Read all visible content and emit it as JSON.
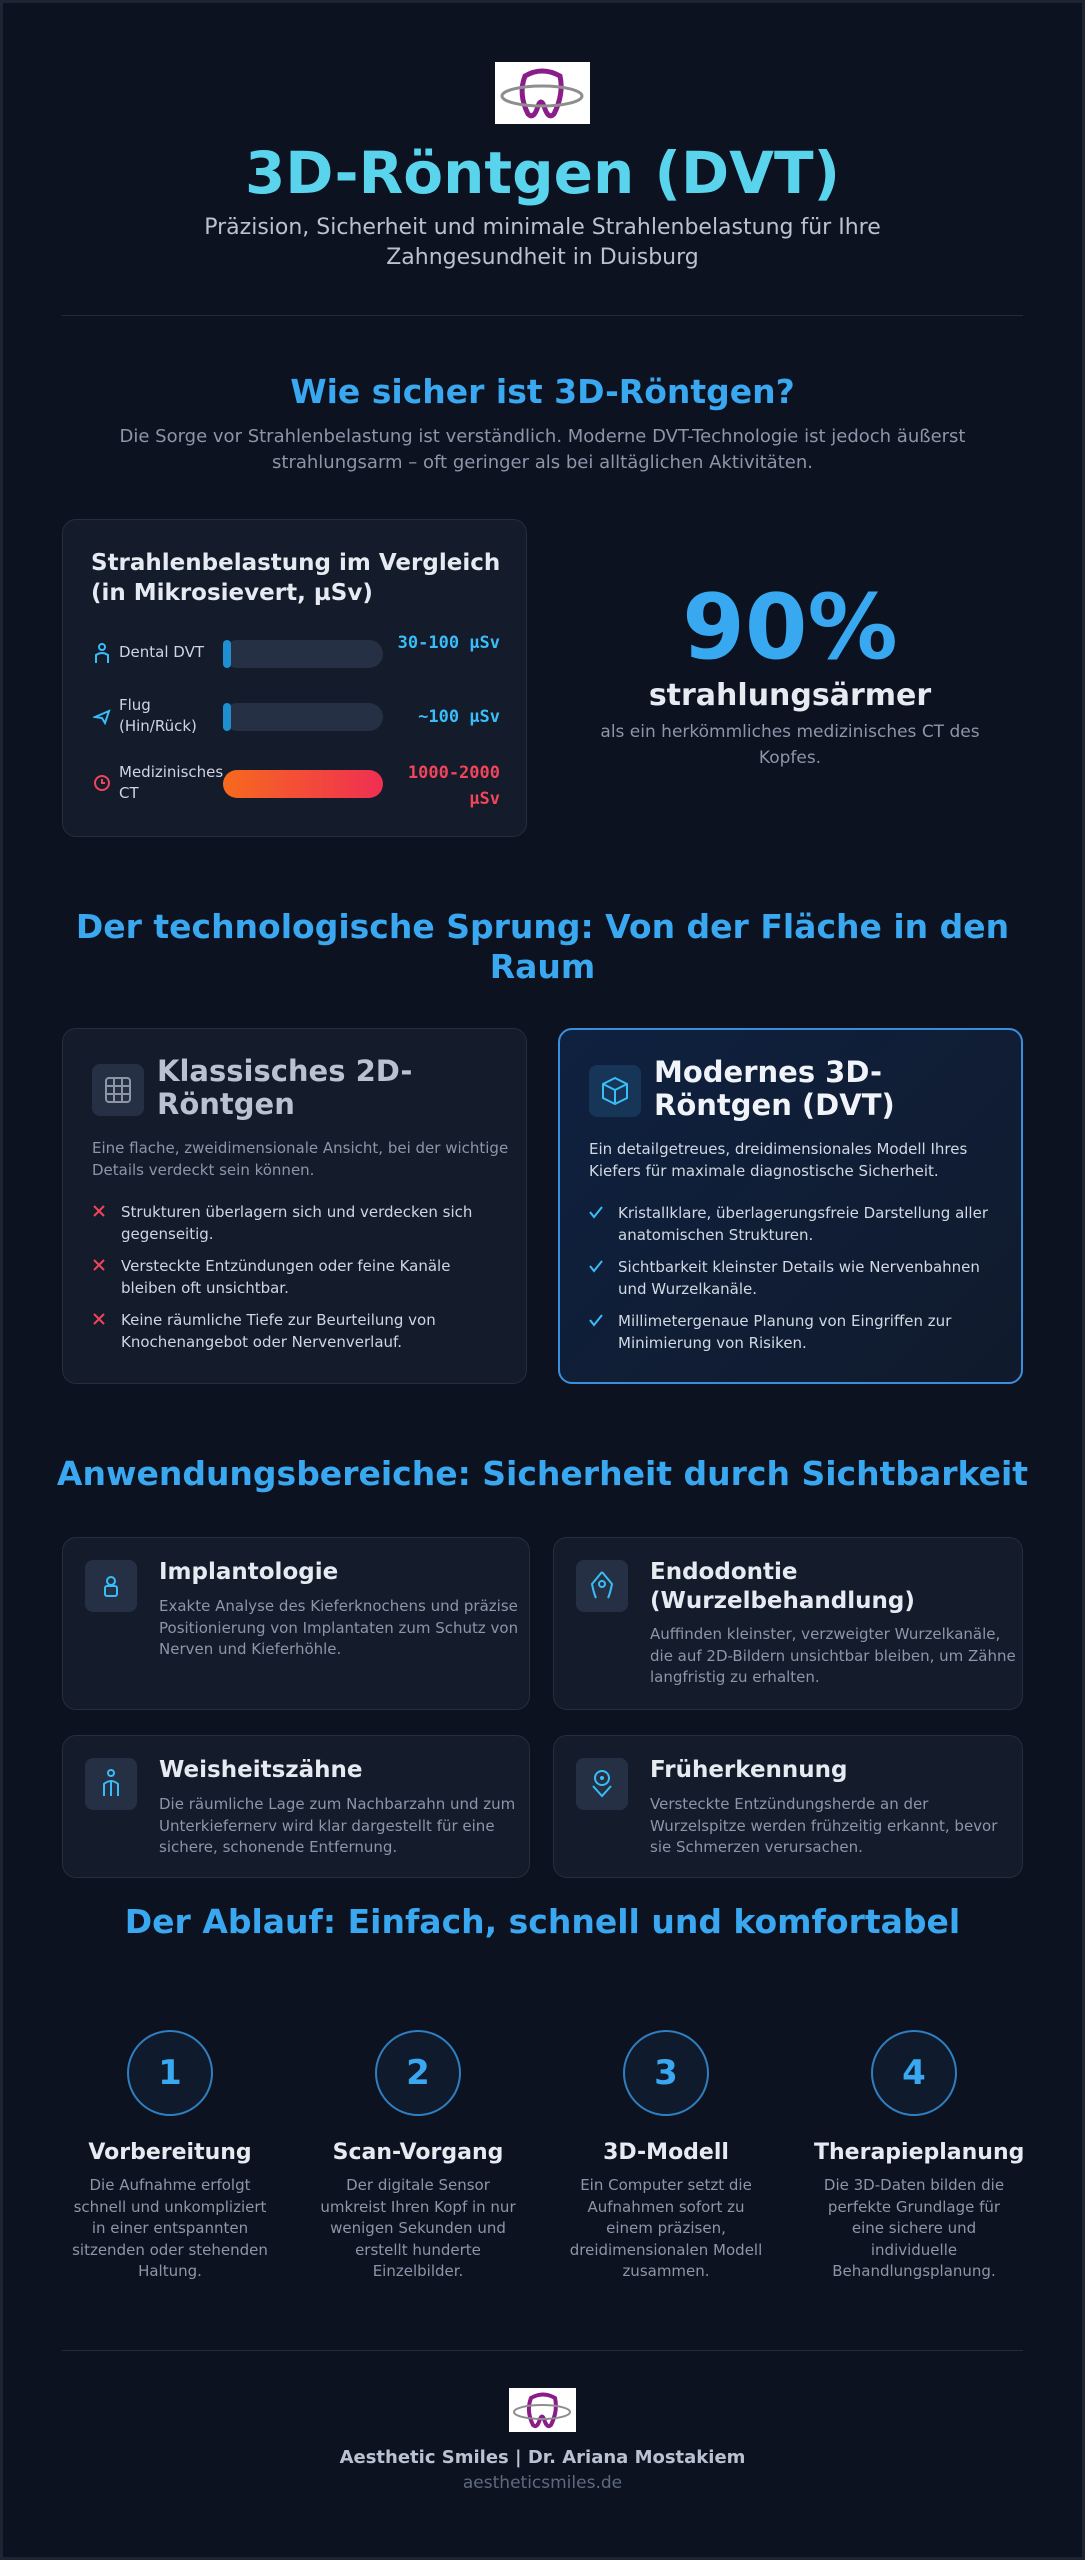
{
  "header": {
    "title": "3D-Röntgen (DVT)",
    "subtitle": "Präzision, Sicherheit und minimale Strahlenbelastung für Ihre Zahngesundheit in Duisburg"
  },
  "safety": {
    "heading": "Wie sicher ist 3D-Röntgen?",
    "intro": "Die Sorge vor Strahlenbelastung ist verständlich. Moderne DVT-Technologie ist jedoch äußerst strahlungsarm – oft geringer als bei alltäglichen Aktivitäten.",
    "comparison": {
      "title": "Strahlenbelastung im Vergleich (in Mikrosievert, µSv)",
      "rows": [
        {
          "label": "Dental DVT",
          "value": "30-100 µSv"
        },
        {
          "label": "Flug (Hin/Rück)",
          "value": "~100 µSv"
        },
        {
          "label": "Medizinisches CT",
          "value": "1000-2000 µSv"
        }
      ]
    },
    "stat": {
      "value": "90%",
      "label": "strahlungsärmer",
      "note": "als ein herkömmliches medizinisches CT des Kopfes."
    }
  },
  "tech": {
    "heading": "Der technologische Sprung: Von der Fläche in den Raum",
    "cards": [
      {
        "title": "Klassisches 2D-Röntgen",
        "text": "Eine flache, zweidimensionale Ansicht, bei der wichtige Details verdeckt sein können.",
        "points": [
          "Strukturen überlagern sich und verdecken sich gegenseitig.",
          "Versteckte Entzündungen oder feine Kanäle bleiben oft unsichtbar.",
          "Keine räumliche Tiefe zur Beurteilung von Knochenangebot oder Nervenverlauf."
        ]
      },
      {
        "title": "Modernes 3D-Röntgen (DVT)",
        "text": "Ein detailgetreues, dreidimensionales Modell Ihres Kiefers für maximale diagnostische Sicherheit.",
        "points": [
          "Kristallklare, überlagerungsfreie Darstellung aller anatomischen Strukturen.",
          "Sichtbarkeit kleinster Details wie Nervenbahnen und Wurzelkanäle.",
          "Millimetergenaue Planung von Eingriffen zur Minimierung von Risiken."
        ]
      }
    ]
  },
  "uses": {
    "heading": "Anwendungsbereiche: Sicherheit durch Sichtbarkeit",
    "items": [
      {
        "title": "Implantologie",
        "text": "Exakte Analyse des Kieferknochens und präzise Positionierung von Implantaten zum Schutz von Nerven und Kieferhöhle."
      },
      {
        "title": "Endodontie (Wurzelbehandlung)",
        "text": "Auffinden kleinster, verzweigter Wurzelkanäle, die auf 2D-Bildern unsichtbar bleiben, um Zähne langfristig zu erhalten."
      },
      {
        "title": "Weisheitszähne",
        "text": "Die räumliche Lage zum Nachbarzahn und zum Unterkiefernerv wird klar dargestellt für eine sichere, schonende Entfernung."
      },
      {
        "title": "Früherkennung",
        "text": "Versteckte Entzündungsherde an der Wurzelspitze werden frühzeitig erkannt, bevor sie Schmerzen verursachen."
      }
    ]
  },
  "process": {
    "heading": "Der Ablauf: Einfach, schnell und komfortabel",
    "steps": [
      {
        "number": 1,
        "title": "Vorbereitung",
        "text": "Die Aufnahme erfolgt schnell und unkompliziert in einer entspannten sitzenden oder stehenden Haltung."
      },
      {
        "number": 2,
        "title": "Scan-Vorgang",
        "text": "Der digitale Sensor umkreist Ihren Kopf in nur wenigen Sekunden und erstellt hunderte Einzelbilder."
      },
      {
        "number": 3,
        "title": "3D-Modell",
        "text": "Ein Computer setzt die Aufnahmen sofort zu einem präzisen, dreidimensionalen Modell zusammen."
      },
      {
        "number": 4,
        "title": "Therapieplanung",
        "text": "Die 3D-Daten bilden die perfekte Grundlage für eine sichere und individuelle Behandlungsplanung."
      }
    ]
  },
  "footer": {
    "name": "Aesthetic Smiles | Dr. Ariana Mostakiem",
    "url": "aestheticsmiles.de"
  }
}
